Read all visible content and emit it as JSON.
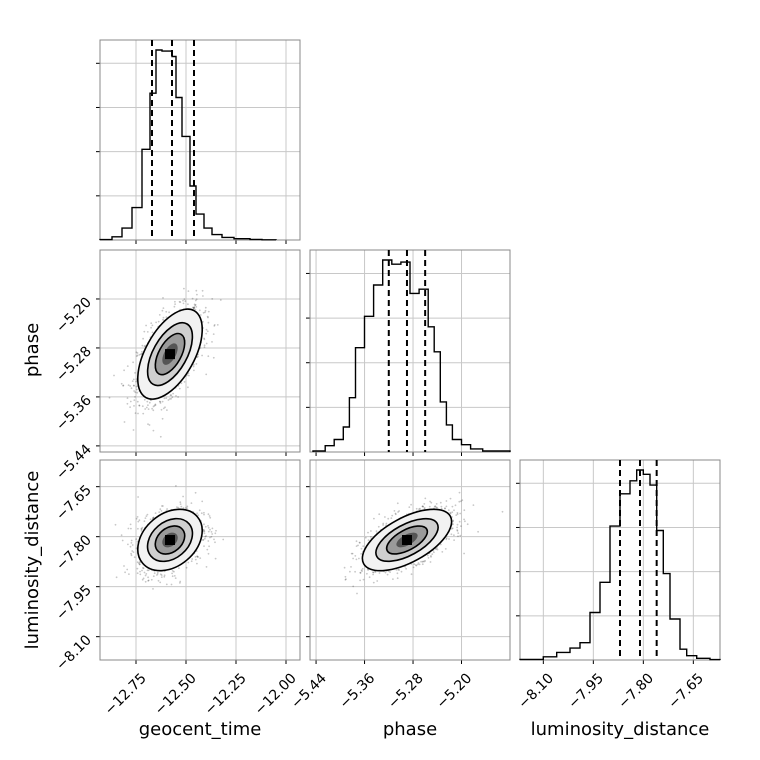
{
  "chart_data": {
    "type": "corner",
    "parameters": [
      "geocent_time",
      "phase",
      "luminosity_distance"
    ],
    "axis_labels": {
      "bottom": [
        "geocent_time",
        "phase",
        "luminosity_distance"
      ],
      "left": [
        "phase",
        "luminosity_distance"
      ]
    },
    "ranges": {
      "geocent_time": [
        -12.93,
        -11.93
      ],
      "phase": [
        -5.45,
        -5.12
      ],
      "luminosity_distance": [
        -8.17,
        -7.57
      ]
    },
    "ticks": {
      "geocent_time": [
        "−12.75",
        "−12.50",
        "−12.25",
        "−12.00"
      ],
      "phase": [
        "−5.44",
        "−5.36",
        "−5.28",
        "−5.20"
      ],
      "luminosity_distance": [
        "−8.10",
        "−7.95",
        "−7.80",
        "−7.65"
      ]
    },
    "tick_values": {
      "geocent_time": [
        -12.75,
        -12.5,
        -12.25,
        -12.0
      ],
      "phase": [
        -5.44,
        -5.36,
        -5.28,
        -5.2
      ],
      "luminosity_distance": [
        -8.1,
        -7.95,
        -7.8,
        -7.65
      ]
    },
    "quantiles": {
      "geocent_time": [
        -12.67,
        -12.57,
        -12.46
      ],
      "phase": [
        -5.32,
        -5.29,
        -5.26
      ],
      "luminosity_distance": [
        -7.87,
        -7.81,
        -7.76
      ]
    },
    "histograms": {
      "geocent_time": {
        "edges": [
          -12.93,
          -12.87,
          -12.82,
          -12.77,
          -12.72,
          -12.68,
          -12.65,
          -12.62,
          -12.57,
          -12.55,
          -12.52,
          -12.48,
          -12.45,
          -12.41,
          -12.37,
          -12.32,
          -12.26,
          -12.18,
          -12.12,
          -12.05
        ],
        "counts": [
          2,
          15,
          55,
          150,
          420,
          680,
          880,
          875,
          850,
          660,
          480,
          250,
          120,
          55,
          25,
          12,
          6,
          3,
          1
        ]
      },
      "phase": {
        "edges": [
          -5.445,
          -5.425,
          -5.41,
          -5.395,
          -5.385,
          -5.375,
          -5.36,
          -5.345,
          -5.33,
          -5.315,
          -5.3,
          -5.285,
          -5.27,
          -5.255,
          -5.245,
          -5.235,
          -5.225,
          -5.215,
          -5.2,
          -5.185,
          -5.165,
          -5.12
        ],
        "counts": [
          5,
          30,
          60,
          120,
          260,
          500,
          650,
          800,
          920,
          900,
          910,
          760,
          780,
          600,
          480,
          240,
          130,
          60,
          35,
          15,
          5
        ]
      },
      "luminosity_distance": {
        "edges": [
          -8.17,
          -8.1,
          -8.06,
          -8.02,
          -7.99,
          -7.96,
          -7.93,
          -7.9,
          -7.87,
          -7.84,
          -7.82,
          -7.8,
          -7.78,
          -7.76,
          -7.74,
          -7.72,
          -7.69,
          -7.67,
          -7.64,
          -7.6,
          -7.57
        ],
        "counts": [
          3,
          15,
          35,
          55,
          80,
          220,
          360,
          620,
          770,
          830,
          880,
          860,
          810,
          600,
          400,
          190,
          50,
          20,
          8,
          2
        ]
      }
    },
    "density_2d": [
      {
        "x": "geocent_time",
        "y": "phase",
        "mean": [
          -12.58,
          -5.29
        ],
        "std": [
          0.07,
          0.032
        ],
        "rho": 0.55
      },
      {
        "x": "geocent_time",
        "y": "luminosity_distance",
        "mean": [
          -12.58,
          -7.81
        ],
        "std": [
          0.07,
          0.04
        ],
        "rho": 0.3
      },
      {
        "x": "phase",
        "y": "luminosity_distance",
        "mean": [
          -5.29,
          -7.81
        ],
        "std": [
          0.032,
          0.04
        ],
        "rho": 0.6
      }
    ]
  }
}
